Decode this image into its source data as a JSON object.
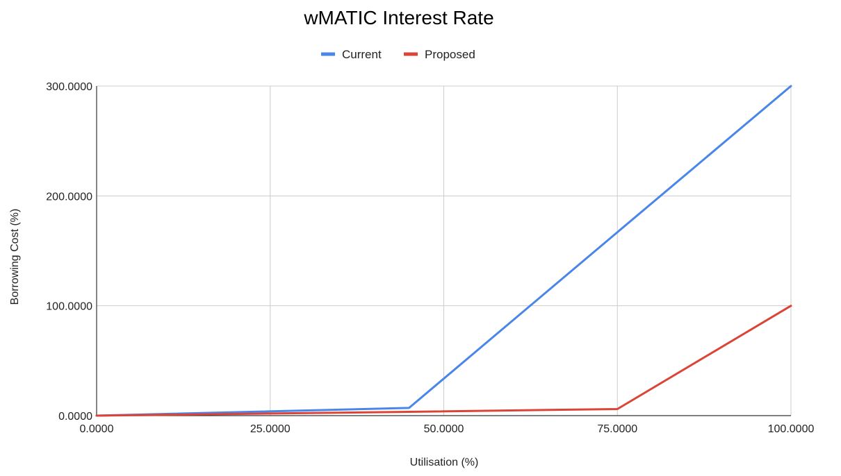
{
  "chart_data": {
    "type": "line",
    "title": "wMATIC Interest Rate",
    "xlabel": "Utilisation (%)",
    "ylabel": "Borrowing Cost (%)",
    "xlim": [
      0,
      100
    ],
    "ylim": [
      0,
      300
    ],
    "x_ticks": [
      "0.0000",
      "25.0000",
      "50.0000",
      "75.0000",
      "100.0000"
    ],
    "x_tick_values": [
      0,
      25,
      50,
      75,
      100
    ],
    "y_ticks": [
      "0.0000",
      "100.0000",
      "200.0000",
      "300.0000"
    ],
    "y_tick_values": [
      0,
      100,
      200,
      300
    ],
    "grid": true,
    "legend_position": "top",
    "series": [
      {
        "name": "Current",
        "color": "#4a86e8",
        "points": [
          [
            0,
            0
          ],
          [
            45,
            7
          ],
          [
            75,
            167
          ],
          [
            100,
            300
          ]
        ]
      },
      {
        "name": "Proposed",
        "color": "#db4437",
        "points": [
          [
            0,
            0
          ],
          [
            45,
            3.5
          ],
          [
            75,
            6
          ],
          [
            100,
            100
          ]
        ]
      }
    ]
  }
}
